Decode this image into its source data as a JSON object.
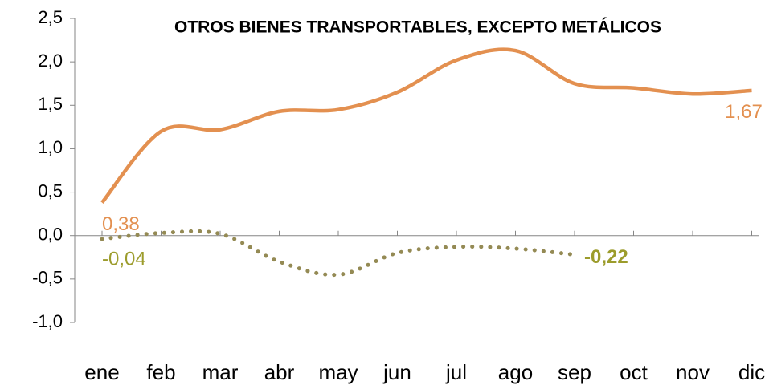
{
  "chart_data": {
    "type": "line",
    "title": "OTROS BIENES TRANSPORTABLES, EXCEPTO METÁLICOS",
    "categories": [
      "ene",
      "feb",
      "mar",
      "abr",
      "may",
      "jun",
      "jul",
      "ago",
      "sep",
      "oct",
      "nov",
      "dic"
    ],
    "series": [
      {
        "color": "#e39050",
        "label_color": "#e39050",
        "dash": "solid",
        "values": [
          0.38,
          1.2,
          1.22,
          1.43,
          1.45,
          1.65,
          2.02,
          2.13,
          1.75,
          1.7,
          1.63,
          1.67
        ],
        "value_labels": [
          "0,38",
          null,
          null,
          null,
          null,
          null,
          null,
          null,
          null,
          null,
          null,
          "1,67"
        ]
      },
      {
        "color": "#948a54",
        "label_color": "#9c9c2c",
        "dash": "dotted",
        "values": [
          -0.04,
          0.03,
          0.02,
          -0.3,
          -0.45,
          -0.2,
          -0.13,
          -0.15,
          -0.22,
          null,
          null,
          null
        ],
        "value_labels": [
          "-0,04",
          null,
          null,
          null,
          null,
          null,
          null,
          null,
          "-0,22",
          null,
          null,
          null
        ]
      }
    ],
    "ylim": [
      -1.0,
      2.5
    ],
    "yticks": [
      {
        "value": -1.0,
        "label": "-1,0"
      },
      {
        "value": -0.5,
        "label": "-0,5"
      },
      {
        "value": 0,
        "label": "0,0"
      },
      {
        "value": 0.5,
        "label": "0,5"
      },
      {
        "value": 1.0,
        "label": "1,0"
      },
      {
        "value": 1.5,
        "label": "1,5"
      },
      {
        "value": 2.0,
        "label": "2,0"
      },
      {
        "value": 2.5,
        "label": "2,5"
      }
    ],
    "grid": false
  }
}
